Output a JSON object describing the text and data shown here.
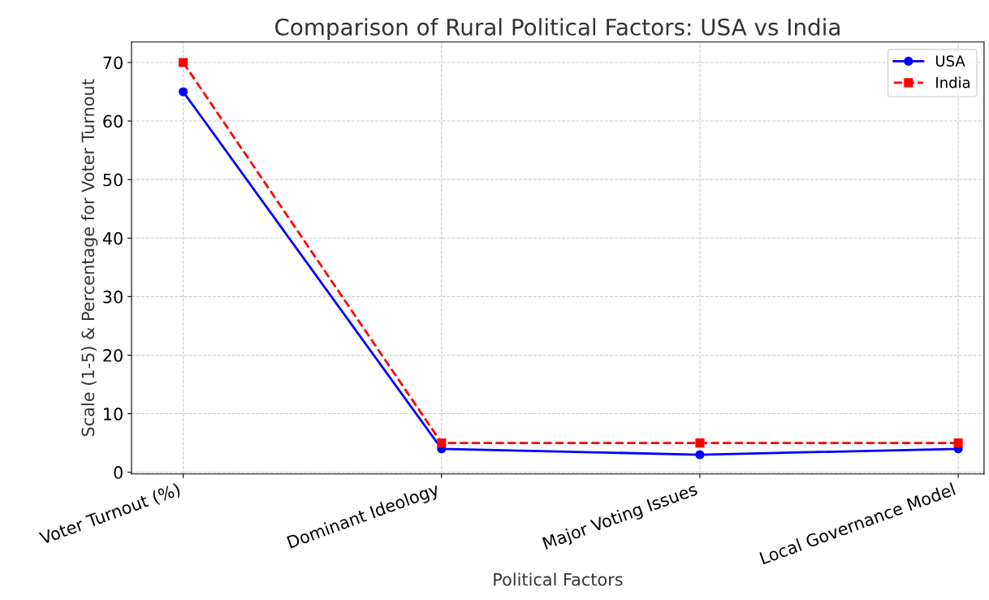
{
  "chart_data": {
    "type": "line",
    "title": "Comparison of Rural Political Factors: USA vs India",
    "xlabel": "Political Factors",
    "ylabel": "Scale (1-5) & Percentage for Voter Turnout",
    "categories": [
      "Voter Turnout (%)",
      "Dominant Ideology",
      "Major Voting Issues",
      "Local Governance Model"
    ],
    "series": [
      {
        "name": "USA",
        "color": "#0000ff",
        "values": [
          65,
          4,
          3,
          4
        ],
        "marker": "circle",
        "line_style": "solid"
      },
      {
        "name": "India",
        "color": "#ff0000",
        "values": [
          70,
          5,
          5,
          5
        ],
        "marker": "square",
        "line_style": "dashed"
      }
    ],
    "ylim": [
      -0.3,
      73.5
    ],
    "yticks": [
      0,
      10,
      20,
      30,
      40,
      50,
      60,
      70
    ],
    "grid": true,
    "legend": "top right"
  }
}
